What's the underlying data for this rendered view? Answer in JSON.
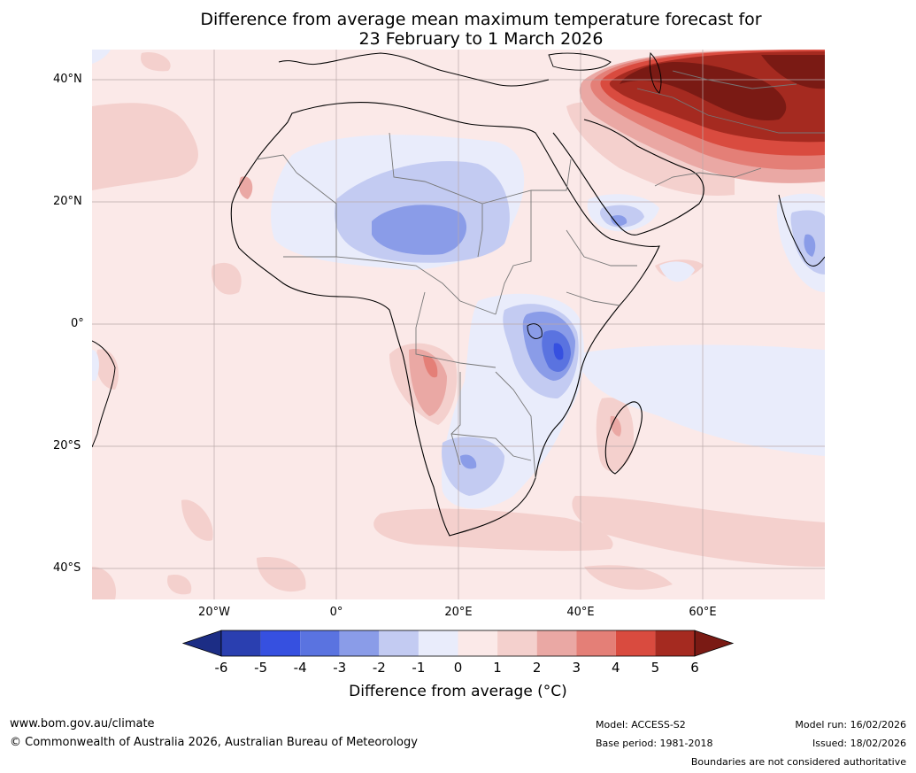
{
  "title": {
    "line1": "Difference from average mean maximum temperature forecast for",
    "line2": "23 February to 1 March 2026"
  },
  "map": {
    "lat_labels": [
      "40°N",
      "20°N",
      "0°",
      "20°S",
      "40°S"
    ],
    "lon_labels": [
      "20°W",
      "0°",
      "20°E",
      "40°E",
      "60°E"
    ],
    "lat_values": [
      40,
      20,
      0,
      -20,
      -40
    ],
    "lon_values": [
      -20,
      0,
      20,
      40,
      60
    ],
    "extent": {
      "lon_min": -40,
      "lon_max": 80,
      "lat_min": -45,
      "lat_max": 45
    }
  },
  "legend": {
    "ticks": [
      "-6",
      "-5",
      "-4",
      "-3",
      "-2",
      "-1",
      "0",
      "1",
      "2",
      "3",
      "4",
      "5",
      "6"
    ],
    "colors": [
      "#1c2d85",
      "#2a3fb0",
      "#3650e0",
      "#5a73e0",
      "#8a9ce8",
      "#c3cbf2",
      "#e9ecfb",
      "#fbe9e8",
      "#f4d0cd",
      "#eaa8a4",
      "#e47f77",
      "#d94b3f",
      "#a52a20",
      "#7a1a14"
    ],
    "label": "Difference from average ($^\\circ$C)",
    "label_display": "Difference from average (°C)"
  },
  "footer": {
    "website": "www.bom.gov.au/climate",
    "copyright": "© Commonwealth of Australia 2026, Australian Bureau of Meteorology",
    "model": "Model: ACCESS-S2",
    "base_period": "Base period: 1981-2018",
    "model_run": "Model run: 16/02/2026",
    "issued": "Issued: 18/02/2026",
    "disclaimer": "Boundaries are not considered authoritative"
  }
}
